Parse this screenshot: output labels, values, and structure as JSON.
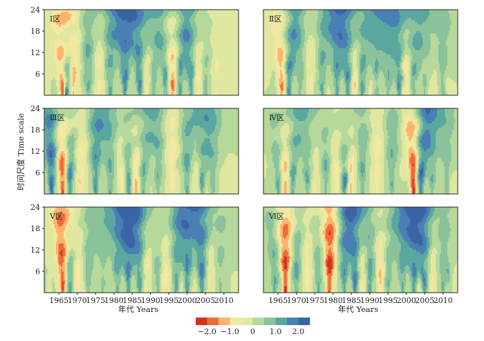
{
  "chart_data": {
    "type": "heatmap",
    "description_kind": "wavelet-style contour maps, 6 panels in a 3x2 grid",
    "panels": [
      {
        "label": "Ⅰ区"
      },
      {
        "label": "Ⅱ区"
      },
      {
        "label": "Ⅲ区"
      },
      {
        "label": "Ⅳ区"
      },
      {
        "label": "Ⅴ区"
      },
      {
        "label": "Ⅵ区"
      }
    ],
    "xlabel": "年代 Years",
    "ylabel": "时间尺度 Time scale",
    "xlim": [
      1961,
      2014
    ],
    "ylim": [
      0,
      24
    ],
    "x_ticks": [
      1965,
      1970,
      1975,
      1980,
      1985,
      1990,
      1995,
      2000,
      2005,
      2010
    ],
    "y_ticks": [
      6,
      12,
      18,
      24
    ],
    "colorbar": {
      "levels": [
        -2.5,
        -2.0,
        -1.5,
        -1.0,
        -0.5,
        0,
        0.5,
        1.0,
        1.5,
        2.0,
        2.5
      ],
      "tick_labels": [
        "−2.0",
        "−1.0",
        "0",
        "1.0",
        "2.0"
      ],
      "tick_values": [
        -2.0,
        -1.0,
        0,
        1.0,
        2.0
      ],
      "colors": [
        "#d7301f",
        "#ee6a3c",
        "#fcb46a",
        "#f2e8a2",
        "#e0e7a0",
        "#b6d89b",
        "#8ac39b",
        "#5aa7a0",
        "#4a7fb5",
        "#3b64a4"
      ]
    },
    "series": [
      {
        "peaks": [
          [
            1966,
            -2.0
          ],
          [
            1967,
            1.8
          ],
          [
            1969,
            -1.2
          ],
          [
            1973,
            1.1
          ],
          [
            1976,
            -0.6
          ],
          [
            1979,
            1.2
          ],
          [
            1983,
            1.6
          ],
          [
            1987,
            1.5
          ],
          [
            1989,
            -0.7
          ],
          [
            1991,
            0.9
          ],
          [
            1994,
            1.0
          ],
          [
            1996,
            -1.5
          ],
          [
            1998,
            1.2
          ],
          [
            2001,
            1.3
          ],
          [
            2003,
            -0.9
          ],
          [
            2005,
            0.7
          ],
          [
            2008,
            -0.5
          ]
        ]
      },
      {
        "peaks": [
          [
            1966,
            -1.4
          ],
          [
            1968,
            1.5
          ],
          [
            1971,
            0.8
          ],
          [
            1974,
            -0.6
          ],
          [
            1977,
            1.0
          ],
          [
            1981,
            1.3
          ],
          [
            1984,
            1.4
          ],
          [
            1986,
            -0.9
          ],
          [
            1988,
            1.2
          ],
          [
            1992,
            1.0
          ],
          [
            1995,
            0.8
          ],
          [
            1998,
            1.3
          ],
          [
            2000,
            -0.8
          ],
          [
            2002,
            1.1
          ],
          [
            2005,
            0.6
          ],
          [
            2010,
            0.7
          ]
        ]
      },
      {
        "peaks": [
          [
            1963,
            1.9
          ],
          [
            1966,
            -1.9
          ],
          [
            1968,
            1.5
          ],
          [
            1971,
            -0.9
          ],
          [
            1975,
            1.3
          ],
          [
            1979,
            1.0
          ],
          [
            1982,
            -0.7
          ],
          [
            1984,
            1.3
          ],
          [
            1986,
            -1.2
          ],
          [
            1988,
            1.1
          ],
          [
            1992,
            0.9
          ],
          [
            1996,
            -0.8
          ],
          [
            2000,
            1.1
          ],
          [
            2003,
            -0.6
          ],
          [
            2004,
            1.2
          ],
          [
            2007,
            0.8
          ]
        ]
      },
      {
        "peaks": [
          [
            1965,
            1.0
          ],
          [
            1967,
            -1.3
          ],
          [
            1969,
            1.2
          ],
          [
            1973,
            0.9
          ],
          [
            1975,
            -0.5
          ],
          [
            1978,
            0.8
          ],
          [
            1981,
            -0.9
          ],
          [
            1983,
            1.2
          ],
          [
            1985,
            -0.8
          ],
          [
            1988,
            1.0
          ],
          [
            1992,
            -0.7
          ],
          [
            1996,
            0.9
          ],
          [
            2002,
            -1.9
          ],
          [
            2004,
            1.9
          ],
          [
            2007,
            0.9
          ],
          [
            2011,
            0.7
          ]
        ]
      },
      {
        "peaks": [
          [
            1966,
            -2.0
          ],
          [
            1968,
            1.2
          ],
          [
            1970,
            -0.9
          ],
          [
            1973,
            0.8
          ],
          [
            1977,
            0.6
          ],
          [
            1981,
            1.1
          ],
          [
            1984,
            1.6
          ],
          [
            1987,
            1.4
          ],
          [
            1989,
            -0.6
          ],
          [
            1992,
            0.8
          ],
          [
            1994,
            -0.7
          ],
          [
            1997,
            1.1
          ],
          [
            2000,
            1.3
          ],
          [
            2004,
            1.7
          ],
          [
            2006,
            -0.5
          ],
          [
            2009,
            0.6
          ]
        ]
      },
      {
        "peaks": [
          [
            1964,
            1.0
          ],
          [
            1967,
            -2.0
          ],
          [
            1970,
            1.1
          ],
          [
            1973,
            -0.7
          ],
          [
            1976,
            0.9
          ],
          [
            1979,
            -2.0
          ],
          [
            1983,
            1.3
          ],
          [
            1986,
            1.6
          ],
          [
            1988,
            -0.8
          ],
          [
            1990,
            1.3
          ],
          [
            1993,
            -1.0
          ],
          [
            1995,
            0.9
          ],
          [
            1999,
            1.1
          ],
          [
            2002,
            1.4
          ],
          [
            2005,
            1.6
          ],
          [
            2007,
            -0.6
          ],
          [
            2010,
            0.8
          ]
        ]
      }
    ]
  }
}
